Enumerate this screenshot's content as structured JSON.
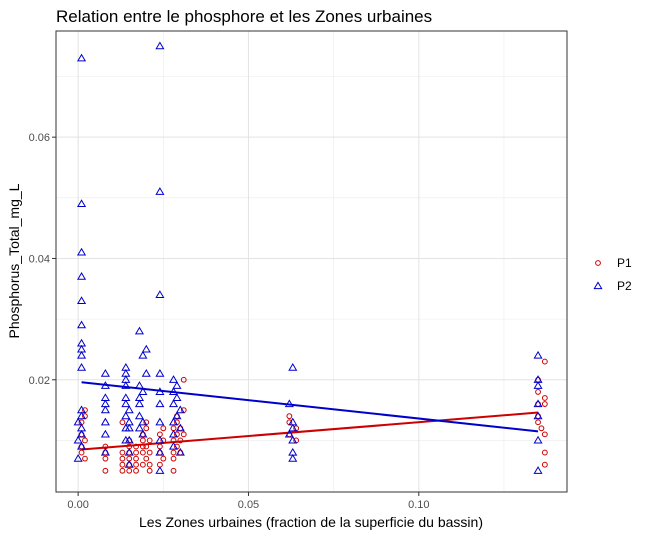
{
  "chart_data": {
    "type": "scatter",
    "title": "Relation entre le phosphore et les Zones urbaines",
    "xlabel": "Les Zones urbaines (fraction de la superficie du bassin)",
    "ylabel": "Phosphorus_Total_mg_L",
    "xlim": [
      -0.0065,
      0.1435
    ],
    "ylim": [
      0.0015,
      0.0775
    ],
    "xticks": [
      0.0,
      0.05,
      0.1
    ],
    "xtick_labels": [
      "0.00",
      "0.05",
      "0.10"
    ],
    "yticks": [
      0.02,
      0.04,
      0.06
    ],
    "ytick_labels": [
      "0.02",
      "0.04",
      "0.06"
    ],
    "grid": true,
    "legend_position": "right",
    "series": [
      {
        "name": "P1",
        "marker": "circle",
        "color": "#cc0000",
        "x": [
          0.001,
          0.001,
          0.001,
          0.001,
          0.002,
          0.002,
          0.002,
          0.002,
          0.008,
          0.008,
          0.008,
          0.008,
          0.013,
          0.013,
          0.013,
          0.013,
          0.013,
          0.015,
          0.015,
          0.015,
          0.015,
          0.015,
          0.015,
          0.017,
          0.017,
          0.017,
          0.017,
          0.017,
          0.019,
          0.019,
          0.019,
          0.019,
          0.019,
          0.02,
          0.02,
          0.02,
          0.02,
          0.021,
          0.021,
          0.021,
          0.021,
          0.024,
          0.024,
          0.024,
          0.024,
          0.025,
          0.025,
          0.025,
          0.028,
          0.028,
          0.028,
          0.028,
          0.028,
          0.029,
          0.029,
          0.029,
          0.029,
          0.03,
          0.03,
          0.03,
          0.031,
          0.031,
          0.031,
          0.062,
          0.062,
          0.062,
          0.064,
          0.064,
          0.135,
          0.135,
          0.135,
          0.135,
          0.135,
          0.136,
          0.137,
          0.137,
          0.137,
          0.137,
          0.137,
          0.137
        ],
        "y": [
          0.008,
          0.009,
          0.011,
          0.013,
          0.007,
          0.01,
          0.014,
          0.015,
          0.005,
          0.007,
          0.008,
          0.009,
          0.005,
          0.006,
          0.007,
          0.008,
          0.013,
          0.005,
          0.006,
          0.007,
          0.008,
          0.009,
          0.01,
          0.005,
          0.006,
          0.007,
          0.008,
          0.009,
          0.006,
          0.008,
          0.009,
          0.01,
          0.011,
          0.007,
          0.009,
          0.012,
          0.013,
          0.005,
          0.006,
          0.008,
          0.01,
          0.006,
          0.008,
          0.009,
          0.011,
          0.007,
          0.01,
          0.012,
          0.005,
          0.007,
          0.008,
          0.01,
          0.012,
          0.009,
          0.011,
          0.013,
          0.014,
          0.008,
          0.01,
          0.012,
          0.011,
          0.015,
          0.02,
          0.011,
          0.013,
          0.014,
          0.01,
          0.012,
          0.013,
          0.014,
          0.016,
          0.018,
          0.02,
          0.012,
          0.006,
          0.008,
          0.011,
          0.016,
          0.017,
          0.023
        ],
        "trend": {
          "x": [
            0.001,
            0.135
          ],
          "y": [
            0.0085,
            0.0146
          ]
        }
      },
      {
        "name": "P2",
        "marker": "triangle",
        "color": "#0000cc",
        "x": [
          0.0,
          0.0,
          0.0,
          0.001,
          0.001,
          0.001,
          0.001,
          0.001,
          0.001,
          0.001,
          0.001,
          0.001,
          0.001,
          0.001,
          0.001,
          0.001,
          0.001,
          0.001,
          0.008,
          0.008,
          0.008,
          0.008,
          0.008,
          0.008,
          0.008,
          0.008,
          0.014,
          0.014,
          0.014,
          0.014,
          0.014,
          0.014,
          0.014,
          0.014,
          0.014,
          0.015,
          0.015,
          0.015,
          0.015,
          0.015,
          0.015,
          0.018,
          0.018,
          0.018,
          0.018,
          0.018,
          0.018,
          0.019,
          0.019,
          0.019,
          0.019,
          0.02,
          0.02,
          0.024,
          0.024,
          0.024,
          0.024,
          0.024,
          0.024,
          0.024,
          0.024,
          0.024,
          0.024,
          0.028,
          0.028,
          0.028,
          0.028,
          0.028,
          0.028,
          0.029,
          0.029,
          0.029,
          0.03,
          0.03,
          0.03,
          0.062,
          0.062,
          0.063,
          0.063,
          0.063,
          0.063,
          0.063,
          0.063,
          0.135,
          0.135,
          0.135,
          0.135,
          0.135,
          0.135,
          0.135
        ],
        "y": [
          0.007,
          0.01,
          0.013,
          0.011,
          0.012,
          0.014,
          0.015,
          0.022,
          0.024,
          0.025,
          0.026,
          0.029,
          0.033,
          0.037,
          0.041,
          0.049,
          0.073,
          0.009,
          0.008,
          0.011,
          0.013,
          0.015,
          0.016,
          0.017,
          0.019,
          0.021,
          0.01,
          0.012,
          0.014,
          0.016,
          0.017,
          0.019,
          0.02,
          0.021,
          0.022,
          0.006,
          0.008,
          0.01,
          0.012,
          0.013,
          0.015,
          0.012,
          0.014,
          0.016,
          0.017,
          0.019,
          0.028,
          0.011,
          0.013,
          0.018,
          0.024,
          0.021,
          0.025,
          0.005,
          0.008,
          0.01,
          0.013,
          0.016,
          0.018,
          0.021,
          0.034,
          0.051,
          0.075,
          0.009,
          0.011,
          0.013,
          0.016,
          0.018,
          0.02,
          0.014,
          0.017,
          0.019,
          0.008,
          0.012,
          0.015,
          0.011,
          0.016,
          0.007,
          0.008,
          0.01,
          0.012,
          0.013,
          0.022,
          0.005,
          0.01,
          0.014,
          0.016,
          0.019,
          0.02,
          0.024
        ],
        "trend": {
          "x": [
            0.001,
            0.135
          ],
          "y": [
            0.0196,
            0.0115
          ]
        }
      }
    ]
  }
}
